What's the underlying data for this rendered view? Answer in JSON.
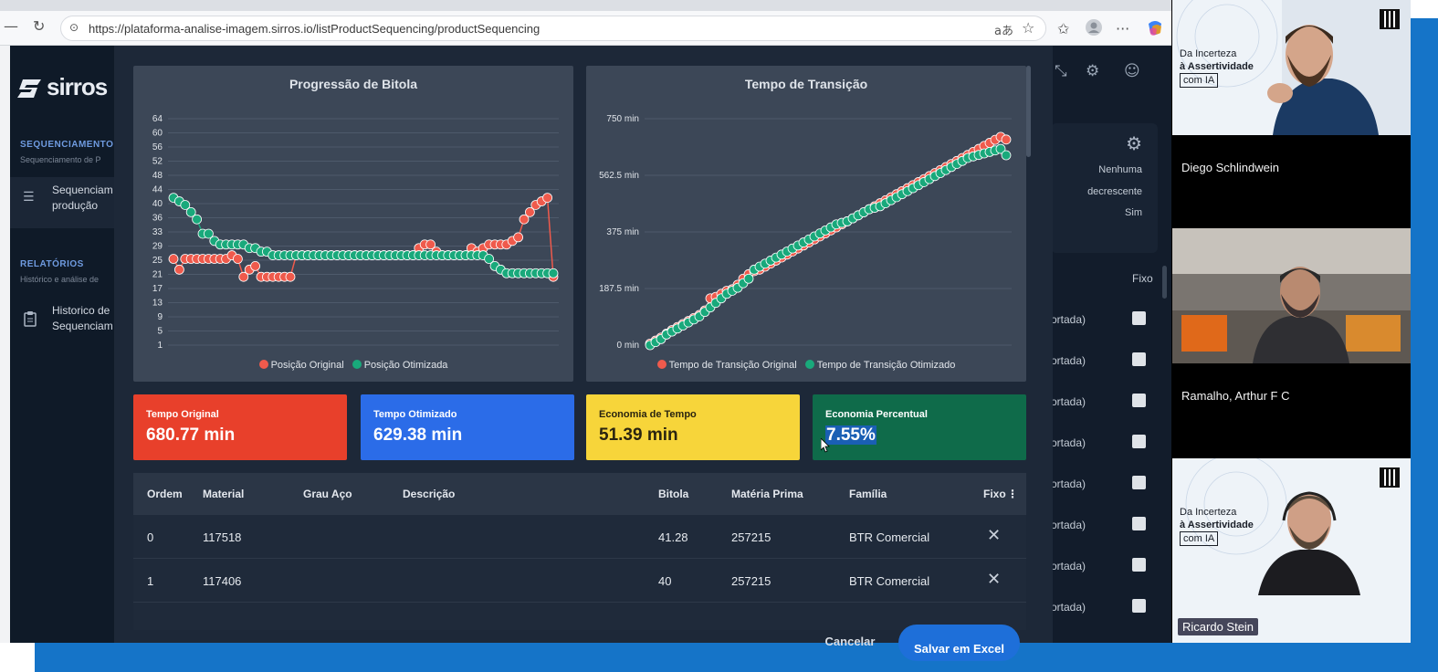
{
  "browser": {
    "url": "https://plataforma-analise-imagem.sirros.io/listProductSequencing/productSequencing",
    "icons": [
      "back-icon",
      "refresh-icon",
      "lock-icon",
      "translate-icon",
      "star-icon",
      "favorites-icon",
      "profile-icon",
      "more-icon",
      "copilot-icon"
    ],
    "more_label": "···",
    "translate_label": "aあ"
  },
  "sidebar": {
    "logo": "sirros",
    "sections": [
      {
        "title": "SEQUENCIAMENTO",
        "subtitle": "Sequenciamento de P",
        "items": [
          {
            "label_lines": [
              "Sequenciam",
              "produção"
            ],
            "icon": "list-icon",
            "active": true
          }
        ]
      },
      {
        "title": "RELATÓRIOS",
        "subtitle": "Histórico e análise de",
        "items": [
          {
            "label_lines": [
              "Historico de",
              "Sequenciam"
            ],
            "icon": "clipboard-icon",
            "active": false
          }
        ]
      }
    ]
  },
  "background_page": {
    "settings_values": [
      "Nenhuma",
      "decrescente",
      "Sim"
    ],
    "fixo_header": "Fixo",
    "row_fragment": "ortada)",
    "row_count": 8
  },
  "charts": {
    "bitola": {
      "title": "Progressão de Bitola",
      "legend": [
        "Posição Original",
        "Posição Otimizada"
      ]
    },
    "transicao": {
      "title": "Tempo de Transição",
      "legend": [
        "Tempo de Transição Original",
        "Tempo de Transição Otimizado"
      ]
    }
  },
  "chart_data": [
    {
      "type": "line",
      "title": "Progressão de Bitola",
      "y_ticks": [
        "64",
        "60",
        "56",
        "52",
        "48",
        "44",
        "40",
        "36",
        "33",
        "29",
        "25",
        "21",
        "17",
        "13",
        "9",
        "5",
        "1"
      ],
      "ylim": [
        1,
        64
      ],
      "grid": true,
      "legend_position": "bottom",
      "series": [
        {
          "name": "Posição Original",
          "color": "#ef5a4c",
          "values": [
            25,
            22,
            25,
            25,
            25,
            25,
            25,
            25,
            25,
            25,
            26,
            25,
            20,
            22,
            23,
            20,
            20,
            20,
            20,
            20,
            20,
            26,
            26,
            26,
            26,
            26,
            26,
            26,
            26,
            26,
            26,
            26,
            26,
            26,
            26,
            26,
            26,
            26,
            26,
            26,
            26,
            26,
            28,
            29,
            29,
            27,
            26,
            26,
            26,
            26,
            26,
            28,
            27,
            28,
            29,
            29,
            29,
            29,
            30,
            31,
            36,
            38,
            40,
            41,
            42,
            20
          ]
        },
        {
          "name": "Posição Otimizada",
          "color": "#19a97b",
          "values": [
            42,
            41,
            40,
            38,
            36,
            32,
            32,
            30,
            29,
            29,
            29,
            29,
            29,
            28,
            28,
            27,
            27,
            26,
            26,
            26,
            26,
            26,
            26,
            26,
            26,
            26,
            26,
            26,
            26,
            26,
            26,
            26,
            26,
            26,
            26,
            26,
            26,
            26,
            26,
            26,
            26,
            26,
            26,
            26,
            26,
            26,
            26,
            26,
            26,
            26,
            26,
            26,
            26,
            26,
            25,
            23,
            22,
            21,
            21,
            21,
            21,
            21,
            21,
            21,
            21,
            21
          ]
        }
      ]
    },
    {
      "type": "line",
      "title": "Tempo de Transição",
      "y_ticks": [
        "750 min",
        "562.5 min",
        "375 min",
        "187.5 min",
        "0 min"
      ],
      "ylim": [
        0,
        750
      ],
      "grid": true,
      "legend_position": "bottom",
      "series": [
        {
          "name": "Tempo de Transição Original",
          "color": "#ef5a4c",
          "values": [
            5,
            15,
            25,
            38,
            50,
            60,
            70,
            80,
            90,
            100,
            115,
            155,
            160,
            170,
            180,
            185,
            200,
            220,
            235,
            245,
            250,
            260,
            270,
            280,
            290,
            300,
            310,
            320,
            330,
            340,
            350,
            360,
            370,
            380,
            390,
            400,
            410,
            420,
            430,
            440,
            450,
            460,
            470,
            480,
            490,
            500,
            510,
            520,
            530,
            540,
            550,
            560,
            570,
            580,
            590,
            600,
            610,
            620,
            630,
            640,
            650,
            660,
            670,
            680,
            690,
            681
          ]
        },
        {
          "name": "Tempo de Transição Otimizado",
          "color": "#19a97b",
          "values": [
            0,
            10,
            20,
            35,
            45,
            55,
            65,
            75,
            85,
            95,
            110,
            125,
            140,
            155,
            170,
            180,
            190,
            205,
            220,
            250,
            260,
            270,
            280,
            290,
            300,
            310,
            320,
            330,
            340,
            350,
            360,
            370,
            380,
            390,
            400,
            405,
            410,
            420,
            430,
            440,
            450,
            455,
            460,
            470,
            480,
            490,
            500,
            510,
            520,
            530,
            540,
            550,
            560,
            570,
            580,
            590,
            600,
            610,
            620,
            625,
            630,
            635,
            640,
            645,
            650,
            629
          ]
        }
      ]
    }
  ],
  "kpis": [
    {
      "label": "Tempo Original",
      "value": "680.77 min",
      "color": "#e8402b",
      "text_color": "#ffffff"
    },
    {
      "label": "Tempo Otimizado",
      "value": "629.38 min",
      "color": "#2b6ce8",
      "text_color": "#ffffff"
    },
    {
      "label": "Economia de Tempo",
      "value": "51.39 min",
      "color": "#f7d53a",
      "text_color": "#2a2410"
    },
    {
      "label": "Economia Percentual",
      "value": "7.55%",
      "color": "#0f6b4a",
      "text_color": "#ffffff"
    }
  ],
  "table": {
    "columns": [
      "Ordem",
      "Material",
      "Grau Aço",
      "Descrição",
      "Bitola",
      "Matéria Prima",
      "Família",
      "Fixo"
    ],
    "rows": [
      {
        "ordem": "0",
        "material": "117518",
        "grau": "",
        "descricao": "",
        "bitola": "41.28",
        "materia": "257215",
        "familia": "BTR Comercial"
      },
      {
        "ordem": "1",
        "material": "117406",
        "grau": "",
        "descricao": "",
        "bitola": "40",
        "materia": "257215",
        "familia": "BTR Comercial"
      }
    ],
    "row_action_icon": "close-icon"
  },
  "footer": {
    "cancel": "Cancelar",
    "save": "Salvar em Excel"
  },
  "participants": [
    {
      "name": "",
      "promo": [
        "Da Incerteza",
        "à Assertividade",
        "com IA"
      ]
    },
    {
      "name": "Diego Schlindwein"
    },
    {
      "name": "Ramalho, Arthur F C"
    },
    {
      "name": "Ricardo Stein",
      "promo": [
        "Da Incerteza",
        "à Assertividade",
        "com IA"
      ]
    }
  ]
}
